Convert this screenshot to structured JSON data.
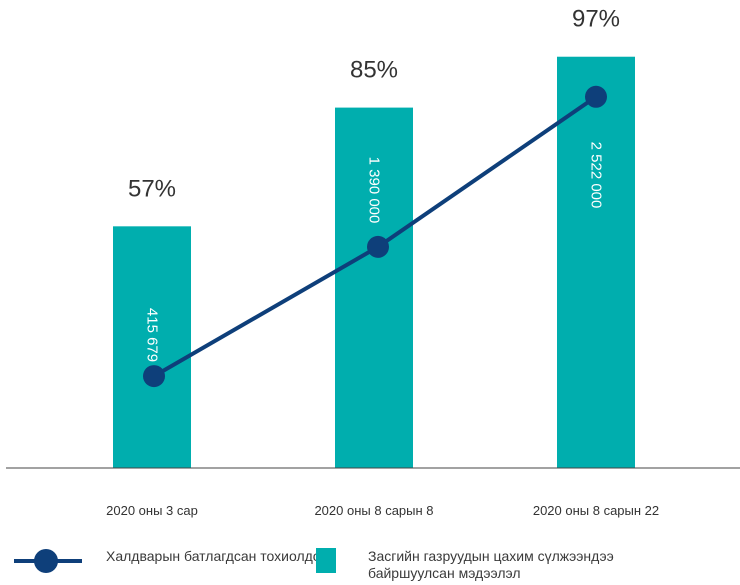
{
  "colors": {
    "bar": "#00aeae",
    "line": "#0e3f7a",
    "axis": "#444444"
  },
  "chart_data": {
    "type": "bar",
    "categories": [
      "2020 оны 3 сар",
      "2020 оны 8 сарын 8",
      "2020 оны 8 сарын 22"
    ],
    "bar_series": {
      "name": "Засгийн газруудын цахим сүлжээндээ байршуулсан мэдээлэл",
      "values": [
        57,
        85,
        97
      ],
      "labels": [
        "57%",
        "85%",
        "97%"
      ]
    },
    "line_series": {
      "name": "Халдварын батлагдсан тохиолдол",
      "values": [
        415679,
        1390000,
        2522000
      ],
      "labels": [
        "415 679",
        "1 390 000",
        "2 522 000"
      ]
    },
    "grid": false,
    "legend_position": "bottom"
  }
}
